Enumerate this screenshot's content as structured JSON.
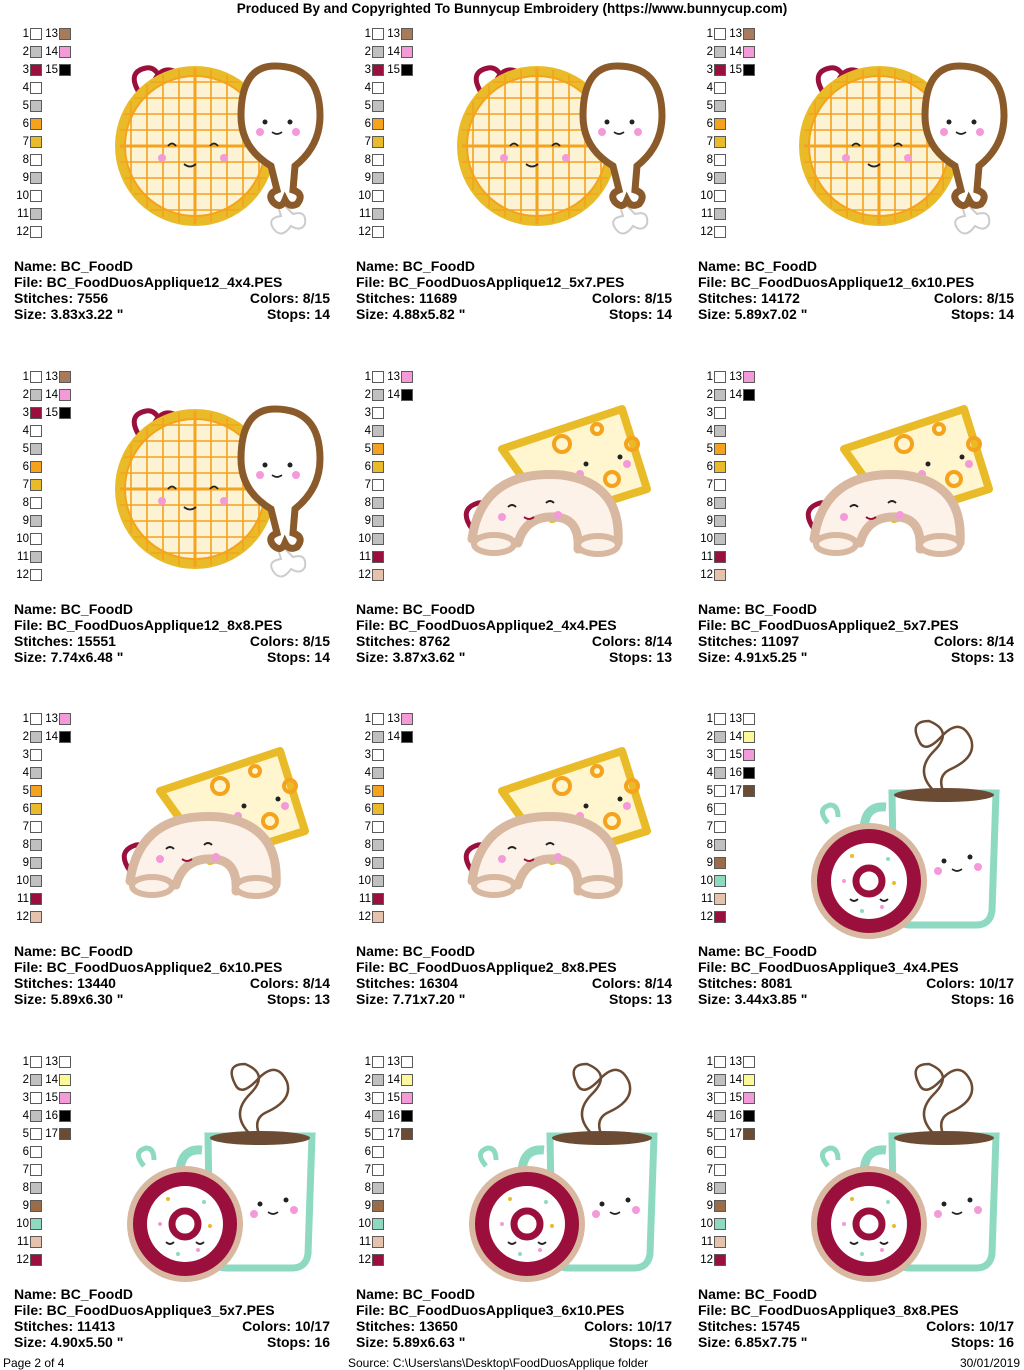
{
  "header": {
    "title": "Produced By and Copyrighted To Bunnycup Embroidery (https://www.bunnycup.com)"
  },
  "labels": {
    "name": "Name:",
    "file": "File:",
    "stitches": "Stitches:",
    "size": "Size:",
    "colors": "Colors:",
    "stops": "Stops:"
  },
  "palettes": {
    "waffle": {
      "left": [
        "#ffffff",
        "#c0c0c0",
        "#9b0f3c",
        "#ffffff",
        "#c0c0c0",
        "#f5a21c",
        "#e9bb28",
        "#ffffff",
        "#c0c0c0",
        "#ffffff",
        "#c0c0c0",
        "#ffffff"
      ],
      "right": [
        "#a87b5a",
        "#f49ad8",
        "#000000"
      ]
    },
    "cheese": {
      "left": [
        "#ffffff",
        "#c0c0c0",
        "#ffffff",
        "#c0c0c0",
        "#f5a21c",
        "#e9bb28",
        "#ffffff",
        "#c0c0c0",
        "#c0c0c0",
        "#c0c0c0",
        "#9b0f3c",
        "#e6c1ac"
      ],
      "right": [
        "#f49ad8",
        "#000000"
      ]
    },
    "coffee": {
      "left": [
        "#ffffff",
        "#c0c0c0",
        "#ffffff",
        "#c0c0c0",
        "#ffffff",
        "#ffffff",
        "#ffffff",
        "#c0c0c0",
        "#9b6c47",
        "#8ed9c1",
        "#e6c1ac",
        "#9b0f3c"
      ],
      "right": [
        "#ffffff",
        "#fbf89a",
        "#f49ad8",
        "#000000",
        "#6b4b33"
      ]
    }
  },
  "designs": [
    {
      "art": "waffle",
      "variant": "wide",
      "name": "BC_FoodD",
      "file": "BC_FoodDuosApplique12_4x4.PES",
      "stitches": "7556",
      "colors": "8/15",
      "size": "3.83x3.22 \"",
      "stops": "14"
    },
    {
      "art": "waffle",
      "variant": "tall",
      "name": "BC_FoodD",
      "file": "BC_FoodDuosApplique12_5x7.PES",
      "stitches": "11689",
      "colors": "8/15",
      "size": "4.88x5.82 \"",
      "stops": "14"
    },
    {
      "art": "waffle",
      "variant": "tall",
      "name": "BC_FoodD",
      "file": "BC_FoodDuosApplique12_6x10.PES",
      "stitches": "14172",
      "colors": "8/15",
      "size": "5.89x7.02 \"",
      "stops": "14"
    },
    {
      "art": "waffle",
      "variant": "wide",
      "name": "BC_FoodD",
      "file": "BC_FoodDuosApplique12_8x8.PES",
      "stitches": "15551",
      "colors": "8/15",
      "size": "7.74x6.48 \"",
      "stops": "14"
    },
    {
      "art": "cheese",
      "variant": "wide",
      "name": "BC_FoodD",
      "file": "BC_FoodDuosApplique2_4x4.PES",
      "stitches": "8762",
      "colors": "8/14",
      "size": "3.87x3.62 \"",
      "stops": "13"
    },
    {
      "art": "cheese",
      "variant": "tall",
      "name": "BC_FoodD",
      "file": "BC_FoodDuosApplique2_5x7.PES",
      "stitches": "11097",
      "colors": "8/14",
      "size": "4.91x5.25 \"",
      "stops": "13"
    },
    {
      "art": "cheese",
      "variant": "tall",
      "name": "BC_FoodD",
      "file": "BC_FoodDuosApplique2_6x10.PES",
      "stitches": "13440",
      "colors": "8/14",
      "size": "5.89x6.30 \"",
      "stops": "13"
    },
    {
      "art": "cheese",
      "variant": "wide",
      "name": "BC_FoodD",
      "file": "BC_FoodDuosApplique2_8x8.PES",
      "stitches": "16304",
      "colors": "8/14",
      "size": "7.71x7.20 \"",
      "stops": "13"
    },
    {
      "art": "coffee",
      "variant": "wide",
      "name": "BC_FoodD",
      "file": "BC_FoodDuosApplique3_4x4.PES",
      "stitches": "8081",
      "colors": "10/17",
      "size": "3.44x3.85 \"",
      "stops": "16"
    },
    {
      "art": "coffee",
      "variant": "tall",
      "name": "BC_FoodD",
      "file": "BC_FoodDuosApplique3_5x7.PES",
      "stitches": "11413",
      "colors": "10/17",
      "size": "4.90x5.50 \"",
      "stops": "16"
    },
    {
      "art": "coffee",
      "variant": "tall",
      "name": "BC_FoodD",
      "file": "BC_FoodDuosApplique3_6x10.PES",
      "stitches": "13650",
      "colors": "10/17",
      "size": "5.89x6.63 \"",
      "stops": "16"
    },
    {
      "art": "coffee",
      "variant": "wide",
      "name": "BC_FoodD",
      "file": "BC_FoodDuosApplique3_8x8.PES",
      "stitches": "15745",
      "colors": "10/17",
      "size": "6.85x7.75 \"",
      "stops": "16"
    }
  ],
  "footer": {
    "page": "Page 2 of 4",
    "source": "Source: C:\\Users\\ans\\Desktop\\FoodDuosApplique folder",
    "date": "30/01/2019"
  }
}
